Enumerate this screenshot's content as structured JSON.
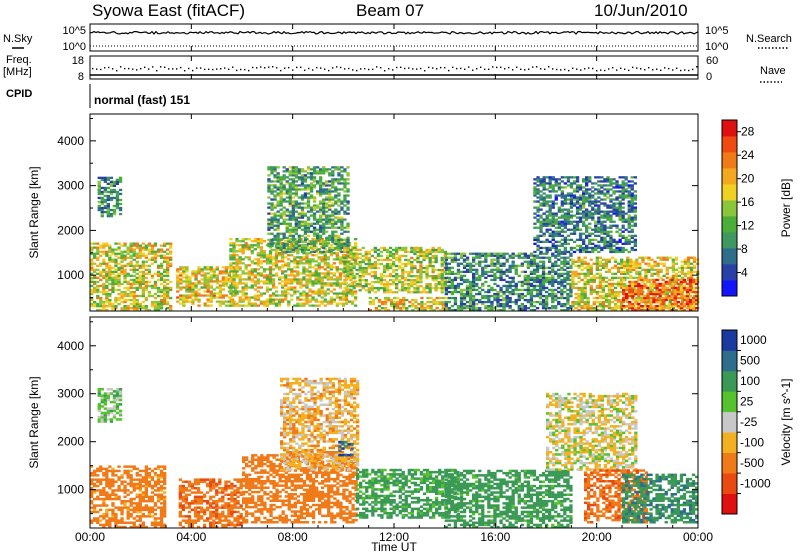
{
  "header": {
    "station": "Syowa East (fitACF)",
    "beam": "Beam 07",
    "date": "10/Jun/2010"
  },
  "strip_labels": {
    "nsky": "N.Sky",
    "nsearch": "N.Search",
    "freq": "Freq.",
    "freq_unit": "[MHz]",
    "nave": "Nave",
    "cpid": "CPID",
    "cpid_value": "normal (fast) 151",
    "noise_ticks": [
      "10^5",
      "10^0"
    ],
    "freq_ticks": [
      "18",
      "8"
    ],
    "nave_ticks": [
      "60",
      "0"
    ]
  },
  "time_axis": {
    "ticks": [
      "00:00",
      "04:00",
      "08:00",
      "12:00",
      "16:00",
      "20:00",
      "00:00"
    ],
    "hours": [
      0,
      4,
      8,
      12,
      16,
      20,
      24
    ],
    "label": "Time UT"
  },
  "chart_data": [
    {
      "type": "heatmap",
      "title": "",
      "xlabel": "Time UT",
      "ylabel": "Slant Range [km]",
      "xlim": [
        0,
        24
      ],
      "ylim": [
        200,
        4600
      ],
      "yticks": [
        1000,
        2000,
        3000,
        4000
      ],
      "colorbar": {
        "label": "Power [dB]",
        "ticks": [
          "4",
          "8",
          "12",
          "16",
          "20",
          "24",
          "28"
        ],
        "values": [
          4,
          8,
          12,
          16,
          20,
          24,
          28
        ],
        "range": [
          0,
          30
        ],
        "colors": [
          "#1414ff",
          "#2b3fa8",
          "#2f6d8c",
          "#3f9860",
          "#4cae3a",
          "#8bc53a",
          "#f0d020",
          "#f3a820",
          "#f07a18",
          "#ee4a12",
          "#e01010"
        ]
      },
      "features": [
        {
          "t0": 0.0,
          "t1": 3.2,
          "r0": 200,
          "r1": 1700,
          "level": 17
        },
        {
          "t0": 0.3,
          "t1": 1.2,
          "r0": 2300,
          "r1": 3200,
          "level": 9
        },
        {
          "t0": 3.4,
          "t1": 5.8,
          "r0": 300,
          "r1": 1200,
          "level": 19
        },
        {
          "t0": 5.5,
          "t1": 10.5,
          "r0": 300,
          "r1": 1800,
          "level": 17
        },
        {
          "t0": 7.0,
          "t1": 10.2,
          "r0": 1500,
          "r1": 3400,
          "level": 11
        },
        {
          "t0": 10.0,
          "t1": 14.0,
          "r0": 600,
          "r1": 1600,
          "level": 16
        },
        {
          "t0": 11.0,
          "t1": 14.0,
          "r0": 200,
          "r1": 500,
          "level": 18
        },
        {
          "t0": 14.0,
          "t1": 19.0,
          "r0": 200,
          "r1": 1500,
          "level": 9
        },
        {
          "t0": 17.5,
          "t1": 21.5,
          "r0": 1500,
          "r1": 3200,
          "level": 8
        },
        {
          "t0": 19.0,
          "t1": 24.0,
          "r0": 200,
          "r1": 1400,
          "level": 18
        },
        {
          "t0": 21.0,
          "t1": 24.0,
          "r0": 200,
          "r1": 900,
          "level": 24
        }
      ]
    },
    {
      "type": "heatmap",
      "title": "",
      "xlabel": "Time UT",
      "ylabel": "Slant Range [km]",
      "xlim": [
        0,
        24
      ],
      "ylim": [
        200,
        4600
      ],
      "yticks": [
        1000,
        2000,
        3000,
        4000
      ],
      "colorbar": {
        "label": "Velocity [m s^-1]",
        "ticks": [
          "1000",
          "500",
          "100",
          "25",
          "-25",
          "-100",
          "-500",
          "-1000"
        ],
        "values": [
          1000,
          500,
          100,
          25,
          -25,
          -100,
          -500,
          -1000
        ],
        "colors": [
          "#1a3aa0",
          "#2f6d8c",
          "#3a9a55",
          "#55c22e",
          "#c8c8c8",
          "#f3b020",
          "#f07a18",
          "#e84a10",
          "#e01010"
        ]
      },
      "features": [
        {
          "t0": 0.0,
          "t1": 3.0,
          "r0": 200,
          "r1": 1500,
          "level": -200
        },
        {
          "t0": 0.3,
          "t1": 1.2,
          "r0": 2400,
          "r1": 3100,
          "level": 60
        },
        {
          "t0": 3.5,
          "t1": 6.0,
          "r0": 200,
          "r1": 1200,
          "level": -400
        },
        {
          "t0": 6.0,
          "t1": 10.5,
          "r0": 300,
          "r1": 1700,
          "level": -300
        },
        {
          "t0": 7.5,
          "t1": 10.5,
          "r0": 1400,
          "r1": 3300,
          "level": -60
        },
        {
          "t0": 9.8,
          "t1": 10.3,
          "r0": 1700,
          "r1": 2000,
          "level": 800
        },
        {
          "t0": 10.5,
          "t1": 14.5,
          "r0": 400,
          "r1": 1400,
          "level": 150
        },
        {
          "t0": 14.0,
          "t1": 19.0,
          "r0": 200,
          "r1": 1400,
          "level": 200
        },
        {
          "t0": 18.0,
          "t1": 21.5,
          "r0": 1400,
          "r1": 3000,
          "level": -20
        },
        {
          "t0": 19.5,
          "t1": 22.0,
          "r0": 300,
          "r1": 1400,
          "level": -400
        },
        {
          "t0": 21.0,
          "t1": 24.0,
          "r0": 300,
          "r1": 1300,
          "level": 400
        }
      ]
    }
  ]
}
